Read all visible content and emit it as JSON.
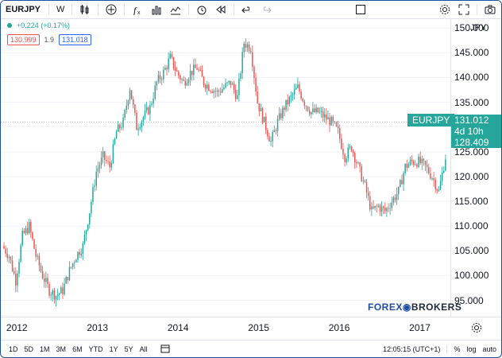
{
  "toolbar": {
    "symbol": "EURJPY",
    "interval": "W",
    "icons": [
      "candles-icon",
      "add-indicator-icon",
      "fx-icon",
      "bar-chart-icon",
      "compare-icon",
      "alert-icon",
      "replay-icon",
      "undo-icon",
      "redo-icon",
      "fullscreen-box-icon",
      "settings-icon",
      "expand-icon",
      "camera-icon"
    ]
  },
  "legend": {
    "change": "+0.224 (+0.17%)",
    "bid": "130.999",
    "spread": "1.9",
    "ask": "131.018"
  },
  "price_axis": {
    "currency": "JPY",
    "labels": [
      "150.000",
      "145.000",
      "140.000",
      "135.000",
      "130.000",
      "125.000",
      "120.000",
      "115.000",
      "110.000",
      "105.000",
      "100.000",
      "95.000"
    ],
    "current_price": "131.012",
    "countdown": "4d 10h",
    "prev_price": "128.409",
    "symbol_tag": "EURJPY"
  },
  "time_axis": {
    "labels": [
      "2012",
      "2013",
      "2014",
      "2015",
      "2016",
      "2017"
    ]
  },
  "bottom_bar": {
    "ranges": [
      "1D",
      "5D",
      "1M",
      "3M",
      "6M",
      "YTD",
      "1Y",
      "5Y",
      "All"
    ],
    "time": "12:05:15 (UTC+1)",
    "percent": "%",
    "log": "log",
    "auto": "auto"
  },
  "watermark": {
    "text_a": "FOREX",
    "text_b": "BROKERS"
  },
  "colors": {
    "up": "#26a69a",
    "down": "#ef5350",
    "tag": "#26a69a"
  },
  "chart_data": {
    "type": "candlestick",
    "x": [
      "2011-11",
      "2011-12",
      "2012-01",
      "2012-02",
      "2012-03",
      "2012-04",
      "2012-05",
      "2012-06",
      "2012-07",
      "2012-08",
      "2012-09",
      "2012-10",
      "2012-11",
      "2012-12",
      "2013-01",
      "2013-02",
      "2013-03",
      "2013-04",
      "2013-05",
      "2013-06",
      "2013-07",
      "2013-08",
      "2013-09",
      "2013-10",
      "2013-11",
      "2013-12",
      "2014-01",
      "2014-02",
      "2014-03",
      "2014-04",
      "2014-05",
      "2014-06",
      "2014-07",
      "2014-08",
      "2014-09",
      "2014-10",
      "2014-11",
      "2014-12",
      "2015-01",
      "2015-02",
      "2015-03",
      "2015-04",
      "2015-05",
      "2015-06",
      "2015-07",
      "2015-08",
      "2015-09",
      "2015-10",
      "2015-11",
      "2015-12",
      "2016-01",
      "2016-02",
      "2016-03",
      "2016-04",
      "2016-05",
      "2016-06",
      "2016-07",
      "2016-08",
      "2016-09",
      "2016-10",
      "2016-11",
      "2016-12",
      "2017-01",
      "2017-02",
      "2017-03",
      "2017-04",
      "2017-05"
    ],
    "close": [
      106,
      104,
      99,
      108,
      110,
      104,
      100,
      97,
      96,
      97,
      101,
      104,
      106,
      113,
      121,
      124,
      122,
      129,
      131,
      138,
      130,
      132,
      134,
      139,
      141,
      144,
      141,
      139,
      141,
      142,
      139,
      138,
      137,
      138,
      139,
      136,
      147,
      146,
      135,
      131,
      127,
      131,
      134,
      136,
      138,
      135,
      133,
      133,
      132,
      131,
      129,
      124,
      126,
      122,
      118,
      113,
      114,
      113,
      115,
      117,
      122,
      123,
      123,
      122,
      120,
      117,
      124
    ],
    "price_min": 93,
    "price_max": 151,
    "ylabel": "JPY"
  }
}
